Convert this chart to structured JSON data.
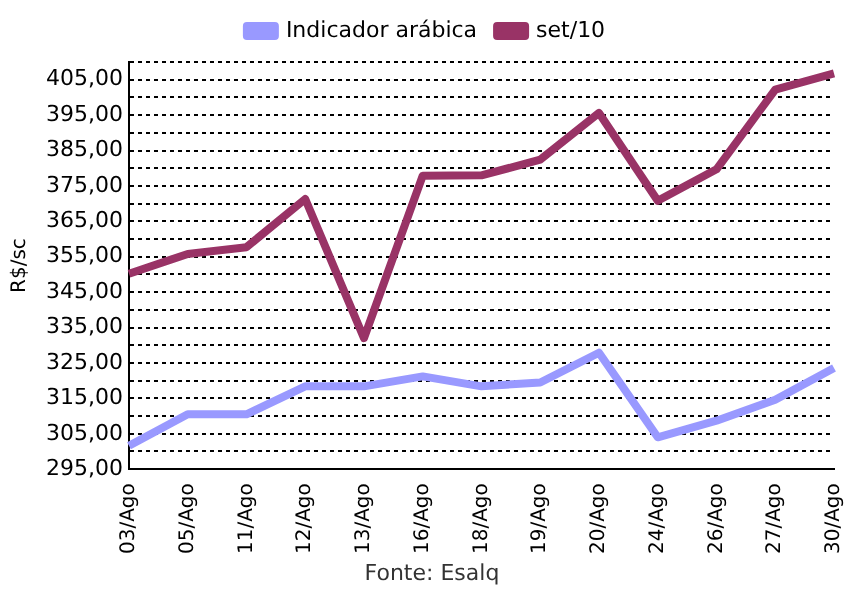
{
  "chart_data": {
    "type": "line",
    "ylabel": "R$/sc",
    "annotations": [
      "Fonte: Esalq"
    ],
    "categories": [
      "03/Ago",
      "05/Ago",
      "11/Ago",
      "12/Ago",
      "13/Ago",
      "16/Ago",
      "18/Ago",
      "19/Ago",
      "20/Ago",
      "24/Ago",
      "26/Ago",
      "27/Ago",
      "30/Ago"
    ],
    "series": [
      {
        "name": "Indicador arábica",
        "color": "#9999ff",
        "values": [
          301.6,
          310.5,
          310.5,
          318.4,
          318.4,
          321.2,
          318.4,
          319.5,
          327.9,
          304,
          308.7,
          314.6,
          323.6
        ]
      },
      {
        "name": "set/10",
        "color": "#993366",
        "values": [
          350.2,
          355.8,
          357.7,
          371.3,
          332,
          377.9,
          378,
          382.4,
          395.6,
          370.8,
          379.7,
          402.2,
          406.8
        ]
      }
    ],
    "ylim": [
      295,
      410
    ],
    "yticks": [
      {
        "value": 295,
        "label": "295,00"
      },
      {
        "value": 300,
        "label": null
      },
      {
        "value": 305,
        "label": "305,00"
      },
      {
        "value": 310,
        "label": null
      },
      {
        "value": 315,
        "label": "315,00"
      },
      {
        "value": 320,
        "label": null
      },
      {
        "value": 325,
        "label": "325,00"
      },
      {
        "value": 330,
        "label": null
      },
      {
        "value": 335,
        "label": "335,00"
      },
      {
        "value": 340,
        "label": null
      },
      {
        "value": 345,
        "label": "345,00"
      },
      {
        "value": 350,
        "label": null
      },
      {
        "value": 355,
        "label": "355,00"
      },
      {
        "value": 360,
        "label": null
      },
      {
        "value": 365,
        "label": "365,00"
      },
      {
        "value": 370,
        "label": null
      },
      {
        "value": 375,
        "label": "375,00"
      },
      {
        "value": 380,
        "label": null
      },
      {
        "value": 385,
        "label": "385,00"
      },
      {
        "value": 390,
        "label": null
      },
      {
        "value": 395,
        "label": "395,00"
      },
      {
        "value": 400,
        "label": null
      },
      {
        "value": 405,
        "label": "405,00"
      },
      {
        "value": 410,
        "label": null
      }
    ],
    "grid": "y",
    "legend": "top",
    "marker": "none",
    "line_style": "solid"
  }
}
